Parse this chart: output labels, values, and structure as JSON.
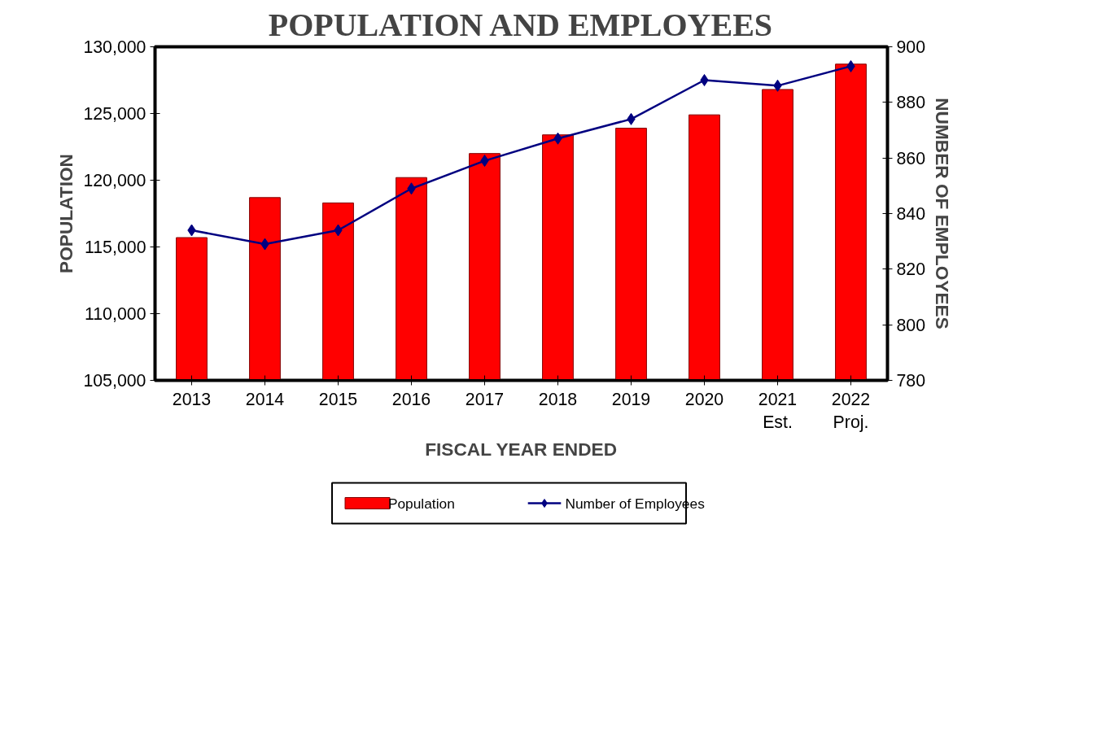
{
  "chart_data": {
    "type": "bar",
    "title": "POPULATION AND EMPLOYEES",
    "xlabel": "FISCAL YEAR ENDED",
    "ylabel": "POPULATION",
    "y2label": "NUMBER OF EMPLOYEES",
    "categories": [
      "2013",
      "2014",
      "2015",
      "2016",
      "2017",
      "2018",
      "2019",
      "2020",
      "2021\nEst.",
      "2022\nProj."
    ],
    "series": [
      {
        "name": "Population",
        "type": "bar",
        "color": "#ff0000",
        "values": [
          115700,
          118700,
          118300,
          120200,
          122000,
          123400,
          123900,
          124900,
          126800,
          128700
        ]
      },
      {
        "name": "Number of Employees",
        "type": "line",
        "axis": "y2",
        "color": "#000080",
        "marker": "diamond",
        "values": [
          834,
          829,
          834,
          849,
          859,
          867,
          874,
          888,
          886,
          893
        ]
      }
    ],
    "ylim": [
      105000,
      130000
    ],
    "yticks": [
      {
        "value": 105000,
        "label": "105,000"
      },
      {
        "value": 110000,
        "label": "110,000"
      },
      {
        "value": 115000,
        "label": "115,000"
      },
      {
        "value": 120000,
        "label": "120,000"
      },
      {
        "value": 125000,
        "label": "125,000"
      },
      {
        "value": 130000,
        "label": "130,000"
      }
    ],
    "y2lim": [
      780,
      900
    ],
    "y2ticks": [
      780,
      800,
      820,
      840,
      860,
      880,
      900
    ],
    "grid": false,
    "legend": "bottom"
  }
}
